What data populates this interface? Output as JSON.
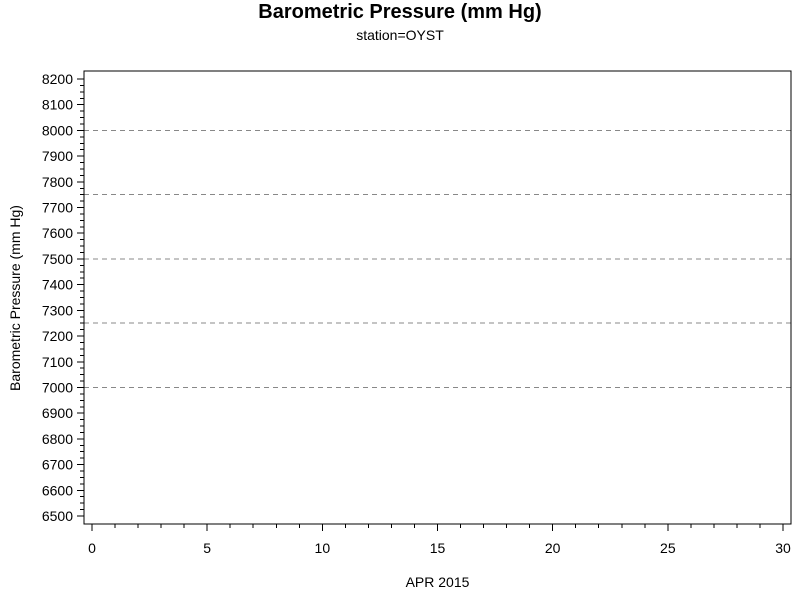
{
  "chart_data": {
    "type": "line",
    "title": "Barometric Pressure (mm Hg)",
    "subtitle": "station=OYST",
    "xlabel": "APR 2015",
    "ylabel": "Barometric Pressure (mm Hg)",
    "x_axis": {
      "min": 0,
      "max": 30,
      "major_ticks": [
        0,
        5,
        10,
        15,
        20,
        25,
        30
      ],
      "minor_step": 1
    },
    "y_axis": {
      "min": 6500,
      "max": 8200,
      "major_ticks": [
        6500,
        6600,
        6700,
        6800,
        6900,
        7000,
        7100,
        7200,
        7300,
        7400,
        7500,
        7600,
        7700,
        7800,
        7900,
        8000,
        8100,
        8200
      ],
      "minor_step": 25
    },
    "gridlines_y": [
      7000,
      7250,
      7500,
      7750,
      8000
    ],
    "grid": {
      "style": "dashed",
      "color": "#888888",
      "dash": "5,4"
    },
    "axis_color": "#000000",
    "text_color": "#000000",
    "background": "#ffffff",
    "legend": null,
    "series": []
  }
}
